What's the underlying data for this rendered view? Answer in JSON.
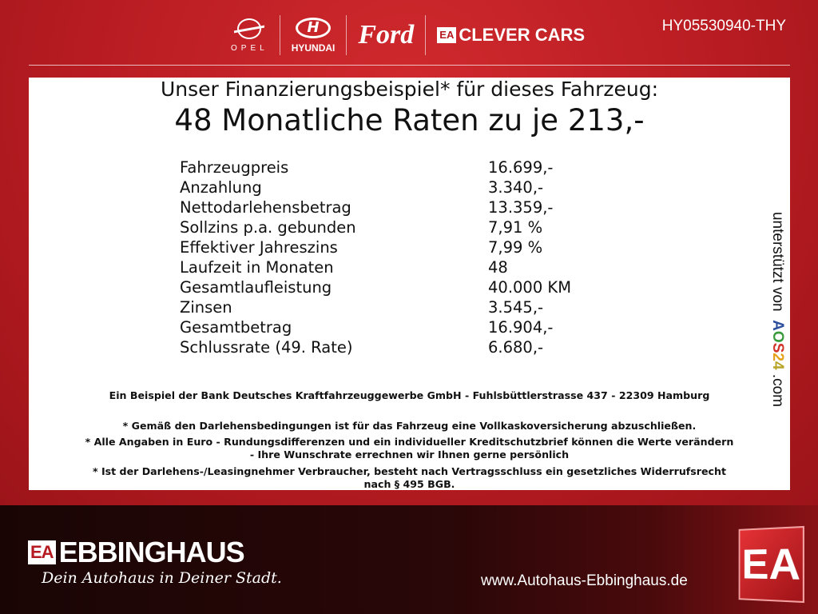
{
  "header": {
    "brands": {
      "opel": "OPEL",
      "hyundai": "HYUNDAI",
      "ford": "Ford",
      "clever_badge": "EA",
      "clever": "CLEVER CARS"
    },
    "vehicle_id": "HY05530940-THY"
  },
  "offer": {
    "title": "Unser Finanzierungsbeispiel* für dieses Fahrzeug:",
    "subtitle": "48 Monatliche Raten zu je 213,-",
    "rows": [
      {
        "label": "Fahrzeugpreis",
        "value": "16.699,-"
      },
      {
        "label": "Anzahlung",
        "value": "3.340,-"
      },
      {
        "label": "Nettodarlehensbetrag",
        "value": "13.359,-"
      },
      {
        "label": "Sollzins p.a. gebunden",
        "value": "7,91 %"
      },
      {
        "label": "Effektiver Jahreszins",
        "value": "7,99 %"
      },
      {
        "label": "Laufzeit in Monaten",
        "value": "48"
      },
      {
        "label": "Gesamtlaufleistung",
        "value": "40.000 KM"
      },
      {
        "label": "Zinsen",
        "value": "3.545,-"
      },
      {
        "label": "Gesamtbetrag",
        "value": "16.904,-"
      },
      {
        "label": "Schlussrate (49. Rate)",
        "value": "6.680,-"
      }
    ],
    "bank_note": "Ein Beispiel der Bank Deutsches Kraftfahrzeuggewerbe GmbH - Fuhlsbüttlerstrasse 437 - 22309 Hamburg",
    "footnotes": [
      "* Gemäß den Darlehensbedingungen ist für das Fahrzeug eine Vollkaskoversicherung abzuschließen.",
      "* Alle Angaben in Euro - Rundungsdifferenzen und ein individueller Kreditschutzbrief können die Werte verändern",
      "- Ihre Wunschrate errechnen wir Ihnen gerne persönlich",
      "* Ist der Darlehens-/Leasingnehmer Verbraucher, besteht nach Vertragsschluss ein gesetzliches Widerrufsrecht",
      "nach § 495 BGB."
    ],
    "sponsor": {
      "prefix": "unterstützt von",
      "a": "A",
      "o": "O",
      "s": "S",
      "two": "2",
      "four": "4",
      "suffix": ".com"
    }
  },
  "footer": {
    "badge": "EA",
    "name": "EBBINGHAUS",
    "slogan": "Dein Autohaus in Deiner Stadt.",
    "url": "www.Autohaus-Ebbinghaus.de",
    "big_logo": "EA"
  },
  "colors": {
    "brand_red": "#b51a20",
    "dark": "#1a0505"
  }
}
